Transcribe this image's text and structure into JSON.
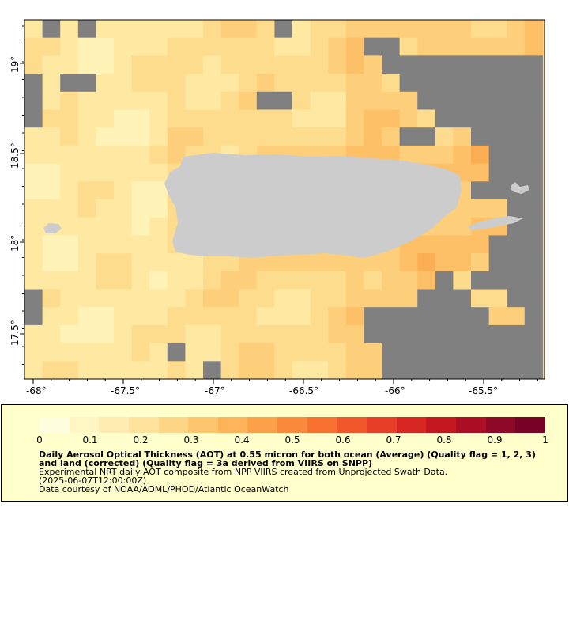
{
  "map": {
    "x_ticks": [
      "-68°",
      "-67.5°",
      "-67°",
      "-66.5°",
      "-66°",
      "-65.5°"
    ],
    "y_ticks": [
      "19°",
      "18.5°",
      "18°",
      "17.5°"
    ]
  },
  "legend": {
    "colorbar_labels": [
      "0",
      "0.1",
      "0.2",
      "0.3",
      "0.4",
      "0.5",
      "0.6",
      "0.7",
      "0.8",
      "0.9",
      "1"
    ],
    "colors": [
      "#ffffe0",
      "#fff6c4",
      "#ffecb0",
      "#ffe29c",
      "#fdd586",
      "#fdc66e",
      "#fdb45a",
      "#fca04a",
      "#fc8a3c",
      "#f97131",
      "#f2562b",
      "#e73e27",
      "#d82722",
      "#c41820",
      "#ac0e25",
      "#8f0a28",
      "#760326"
    ],
    "title": "Daily Aerosol Optical Thickness (AOT) at 0.55 micron for both ocean (Average) (Quality flag = 1, 2, 3) and land (corrected) (Quality flag = 3a derived from VIIRS on SNPP)",
    "subtitle": "Experimental NRT daily AOT composite from NPP VIIRS created from Unprojected Swath Data.",
    "time": "(2025-06-07T12:00:00Z)",
    "credit": "Data courtesy of NOAA/AOML/PHOD/Atlantic OceanWatch"
  },
  "colors": {
    "missing": "#808080",
    "land": "#cccccc",
    "panel": "#ffffcc"
  }
}
